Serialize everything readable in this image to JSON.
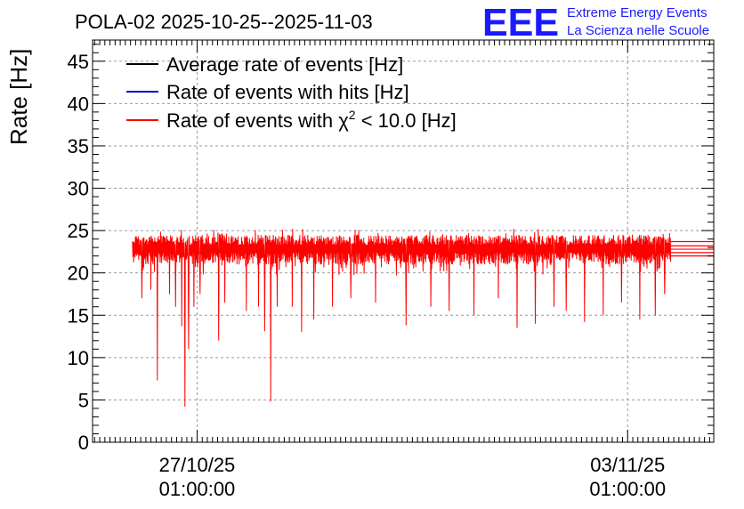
{
  "chart_data": {
    "type": "line",
    "title": "POLA-02 2025-10-25--2025-11-03",
    "xlabel": "",
    "ylabel": "Rate [Hz]",
    "ylim": [
      0,
      47.5
    ],
    "yticks": [
      0,
      5,
      10,
      15,
      20,
      25,
      30,
      35,
      40,
      45
    ],
    "xlim_days": [
      -1.7,
      8.4
    ],
    "xticks": [
      {
        "day": 0,
        "date": "27/10/25",
        "time": "01:00:00"
      },
      {
        "day": 7,
        "date": "03/11/25",
        "time": "01:00:00"
      }
    ],
    "grid": true,
    "legend_position": "top-left",
    "legend": [
      {
        "name": "Average rate of events [Hz]",
        "color": "#000000"
      },
      {
        "name": "Rate of events with hits [Hz]",
        "color": "#0000cc"
      },
      {
        "name_prefix": "Rate of events with ",
        "chi": "χ",
        "sup": "2",
        "name_suffix": " < 10.0 [Hz]",
        "color": "#ff0000"
      }
    ],
    "series_summary": {
      "name": "Rate of events with χ2 < 10.0 [Hz]",
      "start_day": -1.05,
      "end_day": 7.7,
      "band_low": 21.0,
      "band_high": 24.5,
      "typical_min": 19.5,
      "typical_max": 25.2,
      "dips": [
        [
          -0.9,
          17.0
        ],
        [
          -0.75,
          18.0
        ],
        [
          -0.65,
          7.3
        ],
        [
          -0.45,
          17.5
        ],
        [
          -0.35,
          16.0
        ],
        [
          -0.25,
          13.7
        ],
        [
          -0.2,
          4.2
        ],
        [
          -0.14,
          11.0
        ],
        [
          -0.05,
          16.0
        ],
        [
          0.05,
          17.5
        ],
        [
          0.35,
          12.0
        ],
        [
          0.45,
          16.5
        ],
        [
          0.8,
          15.5
        ],
        [
          1.0,
          16.0
        ],
        [
          1.1,
          13.1
        ],
        [
          1.2,
          4.8
        ],
        [
          1.3,
          16.0
        ],
        [
          1.55,
          16.0
        ],
        [
          1.7,
          13.0
        ],
        [
          1.9,
          14.5
        ],
        [
          2.2,
          16.0
        ],
        [
          2.5,
          17.0
        ],
        [
          2.9,
          16.5
        ],
        [
          3.4,
          13.8
        ],
        [
          3.8,
          16.0
        ],
        [
          4.1,
          15.5
        ],
        [
          4.5,
          15.0
        ],
        [
          4.9,
          17.0
        ],
        [
          5.2,
          13.5
        ],
        [
          5.5,
          14.0
        ],
        [
          5.8,
          16.0
        ],
        [
          6.0,
          15.5
        ],
        [
          6.3,
          14.2
        ],
        [
          6.6,
          15.0
        ],
        [
          6.9,
          16.5
        ],
        [
          7.2,
          14.5
        ],
        [
          7.45,
          15.0
        ],
        [
          7.6,
          17.5
        ]
      ],
      "tail_levels": [
        22.0,
        22.4,
        22.8,
        23.2,
        23.7
      ]
    }
  },
  "logo": {
    "letters": "EEE",
    "line1": "Extreme Energy Events",
    "line2": "La Scienza nelle Scuole"
  }
}
